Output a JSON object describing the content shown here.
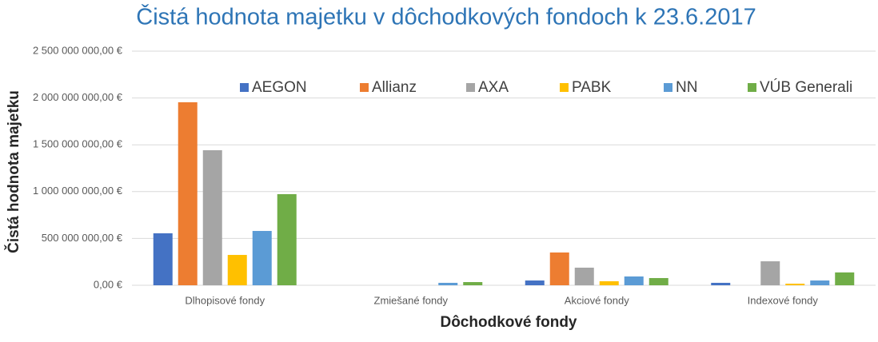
{
  "chart_data": {
    "type": "bar",
    "title": "Čistá hodnota majetku v dôchodkových fondoch k 23.6.2017",
    "x_label": "Dôchodkové fondy",
    "y_label": "Čistá hodnota majetku",
    "categories": [
      "Dlhopisové fondy",
      "Zmiešané fondy",
      "Akciové fondy",
      "Indexové fondy"
    ],
    "series": [
      {
        "name": "AEGON",
        "color": "#4472c4",
        "values": [
          555000000,
          0,
          51000000,
          26000000
        ]
      },
      {
        "name": "Allianz",
        "color": "#ed7d31",
        "values": [
          1954000000,
          0,
          350000000,
          0
        ]
      },
      {
        "name": "AXA",
        "color": "#a5a5a5",
        "values": [
          1442000000,
          0,
          188000000,
          256000000
        ]
      },
      {
        "name": "PABK",
        "color": "#ffc000",
        "values": [
          324000000,
          0,
          43000000,
          17000000
        ]
      },
      {
        "name": "NN",
        "color": "#5b9bd5",
        "values": [
          580000000,
          26000000,
          94000000,
          51000000
        ]
      },
      {
        "name": "VÚB Generali",
        "color": "#70ad47",
        "values": [
          973000000,
          34000000,
          77000000,
          137000000
        ]
      }
    ],
    "ylim": [
      0,
      2500000000
    ],
    "yticks": [
      {
        "value": 0,
        "label": "0,00 €"
      },
      {
        "value": 500000000,
        "label": "500 000 000,00 €"
      },
      {
        "value": 1000000000,
        "label": "1 000 000 000,00 €"
      },
      {
        "value": 1500000000,
        "label": "1 500 000 000,00 €"
      },
      {
        "value": 2000000000,
        "label": "2 000 000 000,00 €"
      },
      {
        "value": 2500000000,
        "label": "2 500 000 000,00 €"
      }
    ],
    "grid": true,
    "legend": "top"
  }
}
